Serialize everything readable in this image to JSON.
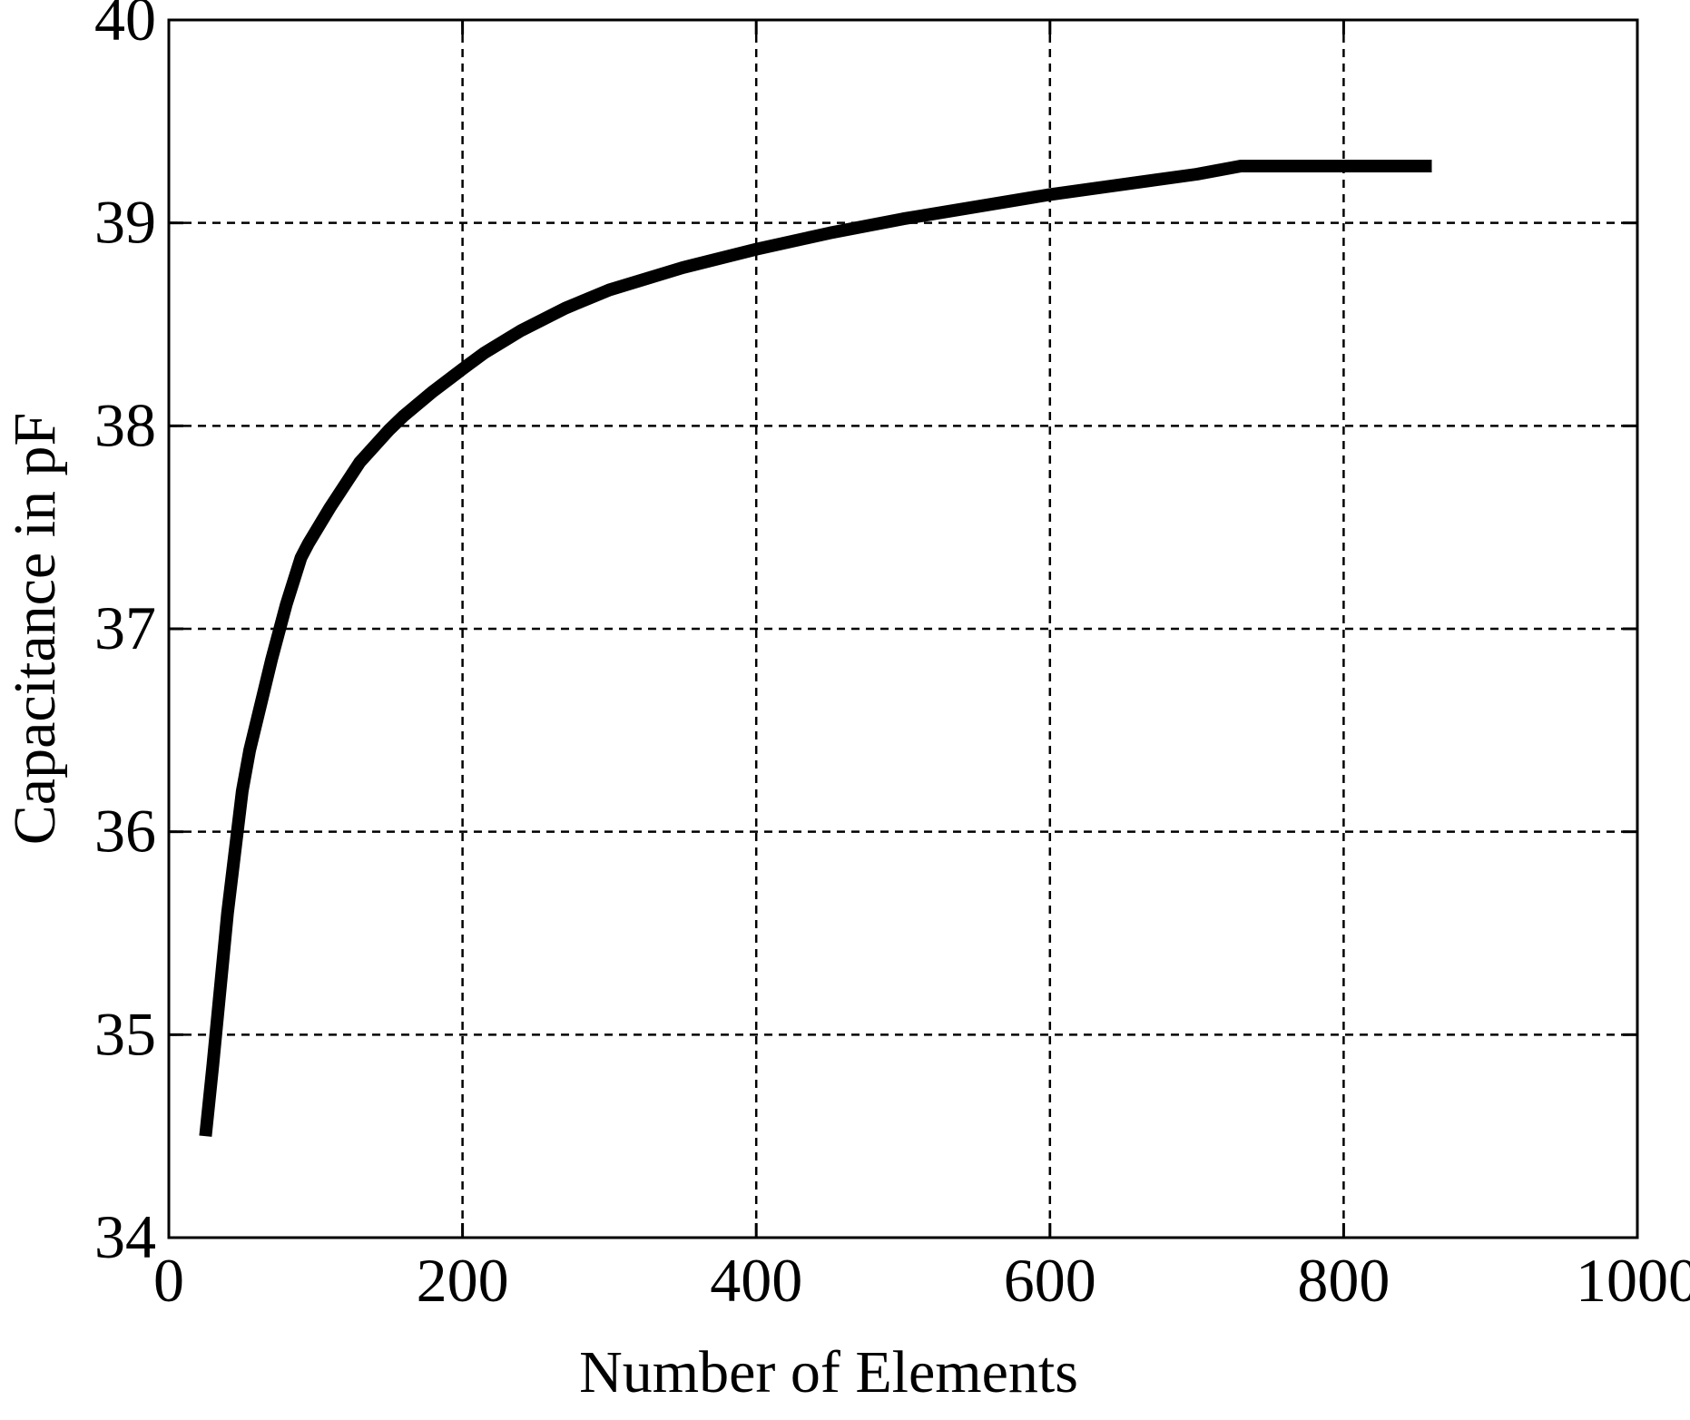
{
  "chart_data": {
    "type": "line",
    "title": "",
    "xlabel": "Number of Elements",
    "ylabel": "Capacitance in pF",
    "xlim": [
      0,
      1000
    ],
    "ylim": [
      34,
      40
    ],
    "xticks": [
      "0",
      "200",
      "400",
      "600",
      "800",
      "1000"
    ],
    "yticks": [
      "34",
      "35",
      "36",
      "37",
      "38",
      "39",
      "40"
    ],
    "grid": true,
    "grid_style": "dashed",
    "legend": "none",
    "line_color": "#000000",
    "series": [
      {
        "x": [
          25,
          30,
          40,
          50,
          55,
          60,
          70,
          80,
          90,
          95,
          110,
          130,
          150,
          160,
          180,
          200,
          215,
          240,
          270,
          300,
          350,
          400,
          450,
          500,
          550,
          600,
          650,
          700,
          730,
          760,
          800,
          860
        ],
        "y": [
          34.5,
          34.85,
          35.6,
          36.2,
          36.4,
          36.55,
          36.85,
          37.12,
          37.35,
          37.42,
          37.6,
          37.82,
          37.98,
          38.05,
          38.17,
          38.28,
          38.36,
          38.47,
          38.58,
          38.67,
          38.78,
          38.87,
          38.95,
          39.02,
          39.08,
          39.14,
          39.19,
          39.24,
          39.28,
          39.28,
          39.28,
          39.28
        ]
      }
    ]
  }
}
